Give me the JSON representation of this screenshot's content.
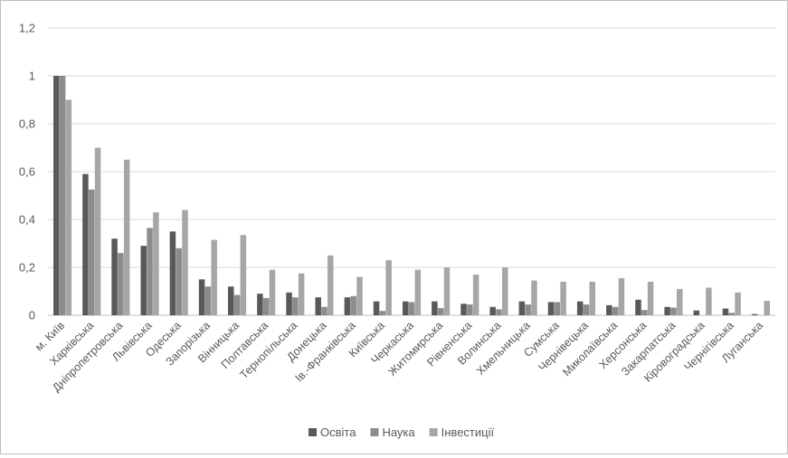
{
  "chart_data": {
    "type": "bar",
    "title": "",
    "xlabel": "",
    "ylabel": "",
    "ylim": [
      0,
      1.2
    ],
    "yticks": [
      "0",
      "0,2",
      "0,4",
      "0,6",
      "0,8",
      "1",
      "1,2"
    ],
    "grid": true,
    "legend_position": "bottom",
    "categories": [
      "м. Київ",
      "Харківська",
      "Дніпропетровська",
      "Львівська",
      "Одеська",
      "Запорізька",
      "Вінницька",
      "Полтавська",
      "Тернопільська",
      "Донецька",
      "Ів.-Франківська",
      "Київська",
      "Черкаська",
      "Житомирська",
      "Рівненська",
      "Волинська",
      "Хмельницька",
      "Сумська",
      "Чернівецька",
      "Миколаївська",
      "Херсонська",
      "Закарпатська",
      "Кіровоградська",
      "Чернігівська",
      "Луганська"
    ],
    "series": [
      {
        "name": "Освіта",
        "color": "#595959",
        "values": [
          1.0,
          0.59,
          0.32,
          0.29,
          0.35,
          0.15,
          0.12,
          0.09,
          0.095,
          0.075,
          0.075,
          0.058,
          0.058,
          0.058,
          0.048,
          0.035,
          0.058,
          0.055,
          0.058,
          0.042,
          0.065,
          0.035,
          0.02,
          0.028,
          0.005
        ]
      },
      {
        "name": "Наука",
        "color": "#8c8c8c",
        "values": [
          1.0,
          0.525,
          0.26,
          0.365,
          0.28,
          0.12,
          0.085,
          0.072,
          0.075,
          0.035,
          0.08,
          0.018,
          0.055,
          0.03,
          0.045,
          0.025,
          0.045,
          0.055,
          0.045,
          0.035,
          0.022,
          0.032,
          0.0,
          0.01,
          0.0
        ]
      },
      {
        "name": "Інвестиції",
        "color": "#a6a6a6",
        "values": [
          0.9,
          0.7,
          0.65,
          0.43,
          0.44,
          0.315,
          0.335,
          0.19,
          0.175,
          0.25,
          0.16,
          0.23,
          0.19,
          0.2,
          0.17,
          0.2,
          0.145,
          0.14,
          0.14,
          0.155,
          0.14,
          0.11,
          0.115,
          0.095,
          0.06
        ]
      }
    ]
  }
}
